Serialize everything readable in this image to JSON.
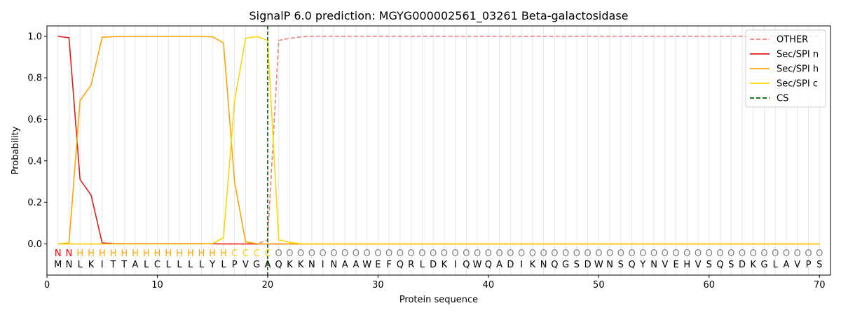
{
  "chart_data": {
    "type": "line",
    "title": "SignalP 6.0 prediction: MGYG000002561_03261 Beta-galactosidase",
    "xlabel": "Protein sequence",
    "ylabel": "Probability",
    "xlim": [
      0,
      71
    ],
    "ylim": [
      -0.15,
      1.05
    ],
    "xticks": [
      0,
      10,
      20,
      30,
      40,
      50,
      60,
      70
    ],
    "yticks": [
      0.0,
      0.2,
      0.4,
      0.6,
      0.8,
      1.0
    ],
    "xtick_labels": [
      "0",
      "10",
      "20",
      "30",
      "40",
      "50",
      "60",
      "70"
    ],
    "ytick_labels": [
      "0.0",
      "0.2",
      "0.4",
      "0.6",
      "0.8",
      "1.0"
    ],
    "legend_position": "top-right",
    "sequence": [
      "M",
      "N",
      "L",
      "K",
      "I",
      "T",
      "T",
      "A",
      "L",
      "C",
      "L",
      "L",
      "L",
      "L",
      "Y",
      "L",
      "P",
      "V",
      "G",
      "A",
      "Q",
      "K",
      "K",
      "N",
      "I",
      "N",
      "A",
      "A",
      "W",
      "E",
      "F",
      "Q",
      "R",
      "L",
      "D",
      "K",
      "I",
      "Q",
      "W",
      "Q",
      "A",
      "D",
      "I",
      "K",
      "N",
      "Q",
      "G",
      "S",
      "D",
      "W",
      "N",
      "S",
      "Q",
      "Y",
      "N",
      "V",
      "E",
      "H",
      "V",
      "S",
      "Q",
      "S",
      "D",
      "K",
      "G",
      "L",
      "A",
      "V",
      "P",
      "S"
    ],
    "region_labels": [
      "N",
      "N",
      "H",
      "H",
      "H",
      "H",
      "H",
      "H",
      "H",
      "H",
      "H",
      "H",
      "H",
      "H",
      "H",
      "H",
      "C",
      "C",
      "C",
      "C",
      "O",
      "O",
      "O",
      "O",
      "O",
      "O",
      "O",
      "O",
      "O",
      "O",
      "O",
      "O",
      "O",
      "O",
      "O",
      "O",
      "O",
      "O",
      "O",
      "O",
      "O",
      "O",
      "O",
      "O",
      "O",
      "O",
      "O",
      "O",
      "O",
      "O",
      "O",
      "O",
      "O",
      "O",
      "O",
      "O",
      "O",
      "O",
      "O",
      "O",
      "O",
      "O",
      "O",
      "O",
      "O",
      "O",
      "O",
      "O",
      "O",
      "O"
    ],
    "region_colors": {
      "N": "#ff0000",
      "H": "#ffa500",
      "C": "#ffcc00",
      "O": "#808080"
    },
    "series": [
      {
        "name": "OTHER",
        "color": "#f08080",
        "dash": "dashed",
        "values": [
          0.0,
          0.0,
          0.0,
          0.0,
          0.0,
          0.0,
          0.0,
          0.0,
          0.0,
          0.0,
          0.0,
          0.0,
          0.0,
          0.0,
          0.0,
          0.0,
          0.0,
          0.0,
          0.0,
          0.02,
          0.98,
          0.99,
          0.997,
          1.0,
          1.0,
          1.0,
          1.0,
          1.0,
          1.0,
          1.0,
          1.0,
          1.0,
          1.0,
          1.0,
          1.0,
          1.0,
          1.0,
          1.0,
          1.0,
          1.0,
          1.0,
          1.0,
          1.0,
          1.0,
          1.0,
          1.0,
          1.0,
          1.0,
          1.0,
          1.0,
          1.0,
          1.0,
          1.0,
          1.0,
          1.0,
          1.0,
          1.0,
          1.0,
          1.0,
          1.0,
          1.0,
          1.0,
          1.0,
          1.0,
          1.0,
          1.0,
          1.0,
          1.0,
          1.0,
          1.0
        ]
      },
      {
        "name": "Sec/SPI n",
        "color": "#e41a1c",
        "dash": "solid",
        "values": [
          1.0,
          0.993,
          0.31,
          0.235,
          0.005,
          0.002,
          0.001,
          0.001,
          0.001,
          0.001,
          0.001,
          0.001,
          0.001,
          0.001,
          0.001,
          0.0,
          0.0,
          0.0,
          0.0,
          0.0,
          0.0,
          0.0,
          0.0,
          0.0,
          0.0,
          0.0,
          0.0,
          0.0,
          0.0,
          0.0,
          0.0,
          0.0,
          0.0,
          0.0,
          0.0,
          0.0,
          0.0,
          0.0,
          0.0,
          0.0,
          0.0,
          0.0,
          0.0,
          0.0,
          0.0,
          0.0,
          0.0,
          0.0,
          0.0,
          0.0,
          0.0,
          0.0,
          0.0,
          0.0,
          0.0,
          0.0,
          0.0,
          0.0,
          0.0,
          0.0,
          0.0,
          0.0,
          0.0,
          0.0,
          0.0,
          0.0,
          0.0,
          0.0,
          0.0,
          0.0
        ]
      },
      {
        "name": "Sec/SPI h",
        "color": "#ffa500",
        "dash": "solid",
        "values": [
          0.0,
          0.005,
          0.69,
          0.765,
          0.995,
          0.998,
          0.999,
          0.999,
          0.999,
          0.999,
          0.999,
          0.999,
          0.999,
          0.999,
          0.997,
          0.968,
          0.3,
          0.01,
          0.001,
          0.0,
          0.0,
          0.0,
          0.0,
          0.0,
          0.0,
          0.0,
          0.0,
          0.0,
          0.0,
          0.0,
          0.0,
          0.0,
          0.0,
          0.0,
          0.0,
          0.0,
          0.0,
          0.0,
          0.0,
          0.0,
          0.0,
          0.0,
          0.0,
          0.0,
          0.0,
          0.0,
          0.0,
          0.0,
          0.0,
          0.0,
          0.0,
          0.0,
          0.0,
          0.0,
          0.0,
          0.0,
          0.0,
          0.0,
          0.0,
          0.0,
          0.0,
          0.0,
          0.0,
          0.0,
          0.0,
          0.0,
          0.0,
          0.0,
          0.0,
          0.0
        ]
      },
      {
        "name": "Sec/SPI c",
        "color": "#ffd700",
        "dash": "solid",
        "values": [
          0.0,
          0.0,
          0.0,
          0.0,
          0.0,
          0.0,
          0.0,
          0.0,
          0.0,
          0.0,
          0.0,
          0.0,
          0.0,
          0.0,
          0.002,
          0.03,
          0.69,
          0.99,
          0.999,
          0.98,
          0.02,
          0.008,
          0.001,
          0.0,
          0.0,
          0.0,
          0.0,
          0.0,
          0.0,
          0.0,
          0.0,
          0.0,
          0.0,
          0.0,
          0.0,
          0.0,
          0.0,
          0.0,
          0.0,
          0.0,
          0.0,
          0.0,
          0.0,
          0.0,
          0.0,
          0.0,
          0.0,
          0.0,
          0.0,
          0.0,
          0.0,
          0.0,
          0.0,
          0.0,
          0.0,
          0.0,
          0.0,
          0.0,
          0.0,
          0.0,
          0.0,
          0.0,
          0.0,
          0.0,
          0.0,
          0.0,
          0.0,
          0.0,
          0.0,
          0.0
        ]
      }
    ],
    "cs": {
      "name": "CS",
      "x": 20,
      "color": "#006400"
    }
  }
}
